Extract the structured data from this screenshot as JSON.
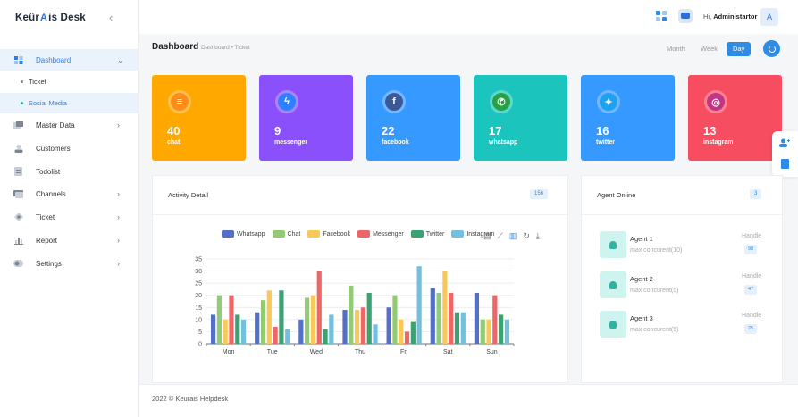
{
  "sidebar": {
    "logo_left": "Keür",
    "logo_mark": "A",
    "logo_right": "is Desk",
    "menu": [
      {
        "label": "Dashboard",
        "icon": "dashboard-icon"
      },
      {
        "label": "Master Data",
        "icon": "database-icon"
      },
      {
        "label": "Customers",
        "icon": "user-icon"
      },
      {
        "label": "Todolist",
        "icon": "checklist-icon"
      },
      {
        "label": "Channels",
        "icon": "channel-icon"
      },
      {
        "label": "Ticket",
        "icon": "ticket-icon"
      },
      {
        "label": "Report",
        "icon": "report-icon"
      },
      {
        "label": "Settings",
        "icon": "settings-icon"
      }
    ],
    "submenu": [
      {
        "label": "Ticket"
      },
      {
        "label": "Sosial Media"
      }
    ]
  },
  "header": {
    "greeting_prefix": "Hi, ",
    "user_name": "Administartor",
    "avatar_letter": "A"
  },
  "titlebar": {
    "title": "Dashboard",
    "crumb_1": "Dashboard",
    "crumb_sep": "•",
    "crumb_2": "Ticket",
    "ranges": [
      "Month",
      "Week",
      "Day"
    ],
    "active_range": "Day"
  },
  "stats": [
    {
      "count": "40",
      "label": "chat",
      "color": "#ffa800",
      "inner": "#ff8c1a"
    },
    {
      "count": "9",
      "label": "messenger",
      "color": "#8950fc",
      "inner": "#2f80ff"
    },
    {
      "count": "22",
      "label": "facebook",
      "color": "#3699ff",
      "inner": "#3b5998"
    },
    {
      "count": "17",
      "label": "whatsapp",
      "color": "#1bc5bd",
      "inner": "#25a244"
    },
    {
      "count": "16",
      "label": "twitter",
      "color": "#3699ff",
      "inner": "#1da1f2"
    },
    {
      "count": "13",
      "label": "instagram",
      "color": "#f64e60",
      "inner": "#c13584"
    }
  ],
  "activity": {
    "title": "Activity Detail",
    "count": "156"
  },
  "agents_panel": {
    "title": "Agent Online",
    "count": "3",
    "handle_label": "Handle",
    "agents": [
      {
        "name": "Agent 1",
        "concurrent": "max concurent(10)",
        "handle": "98"
      },
      {
        "name": "Agent 2",
        "concurrent": "max concurent(5)",
        "handle": "47"
      },
      {
        "name": "Agent 3",
        "concurrent": "max concurent(5)",
        "handle": "25"
      }
    ]
  },
  "footer": {
    "text": "2022 © Keurais Helpdesk"
  },
  "chart_data": {
    "type": "bar",
    "categories": [
      "Mon",
      "Tue",
      "Wed",
      "Thu",
      "Fri",
      "Sat",
      "Sun"
    ],
    "ylim": [
      0,
      35
    ],
    "yticks": [
      0,
      5,
      10,
      15,
      20,
      25,
      30,
      35
    ],
    "grid": true,
    "legend_position": "top",
    "series": [
      {
        "name": "Whatsapp",
        "color": "#5470c6",
        "values": [
          12,
          13,
          10,
          14,
          15,
          23,
          21
        ]
      },
      {
        "name": "Chat",
        "color": "#91cc75",
        "values": [
          20,
          18,
          19,
          24,
          20,
          21,
          10
        ]
      },
      {
        "name": "Facebook",
        "color": "#fac858",
        "values": [
          10,
          22,
          20,
          14,
          10,
          30,
          10
        ]
      },
      {
        "name": "Messenger",
        "color": "#ee6666",
        "values": [
          20,
          7,
          30,
          15,
          5,
          21,
          20
        ]
      },
      {
        "name": "Twitter",
        "color": "#3ba272",
        "values": [
          12,
          22,
          6,
          21,
          9,
          13,
          12
        ]
      },
      {
        "name": "Instagram",
        "color": "#73c0de",
        "values": [
          10,
          6,
          12,
          8,
          32,
          13,
          10
        ]
      }
    ]
  }
}
